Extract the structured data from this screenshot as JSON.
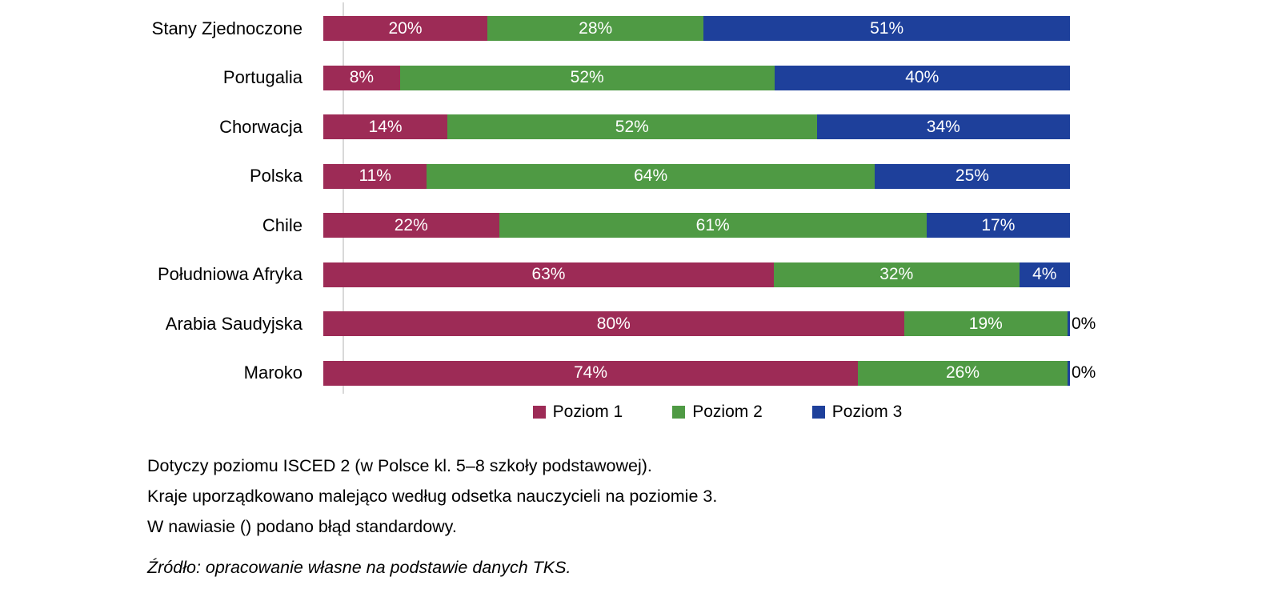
{
  "chart_data": {
    "type": "bar",
    "orientation": "horizontal",
    "stacked": true,
    "grid": false,
    "legend_position": "bottom",
    "xlim": [
      0,
      100
    ],
    "value_suffix": "%",
    "categories": [
      "Stany Zjednoczone",
      "Portugalia",
      "Chorwacja",
      "Polska",
      "Chile",
      "Południowa Afryka",
      "Arabia Saudyjska",
      "Maroko"
    ],
    "series": [
      {
        "name": "Poziom 1",
        "color": "#9d2b56",
        "values": [
          20,
          8,
          14,
          11,
          22,
          63,
          80,
          74
        ]
      },
      {
        "name": "Poziom 2",
        "color": "#4f9a44",
        "values": [
          28,
          52,
          52,
          64,
          61,
          32,
          19,
          26
        ]
      },
      {
        "name": "Poziom 3",
        "color": "#1e409b",
        "values": [
          51,
          40,
          34,
          25,
          17,
          4,
          0,
          0
        ]
      }
    ]
  },
  "notes": {
    "line1": "Dotyczy poziomu ISCED 2 (w Polsce kl. 5–8 szkoły podstawowej).",
    "line2": "Kraje uporządkowano malejąco według odsetka nauczycieli na poziomie 3.",
    "line3": "W nawiasie () podano błąd standardowy."
  },
  "source": "Źródło: opracowanie własne na podstawie danych TKS."
}
